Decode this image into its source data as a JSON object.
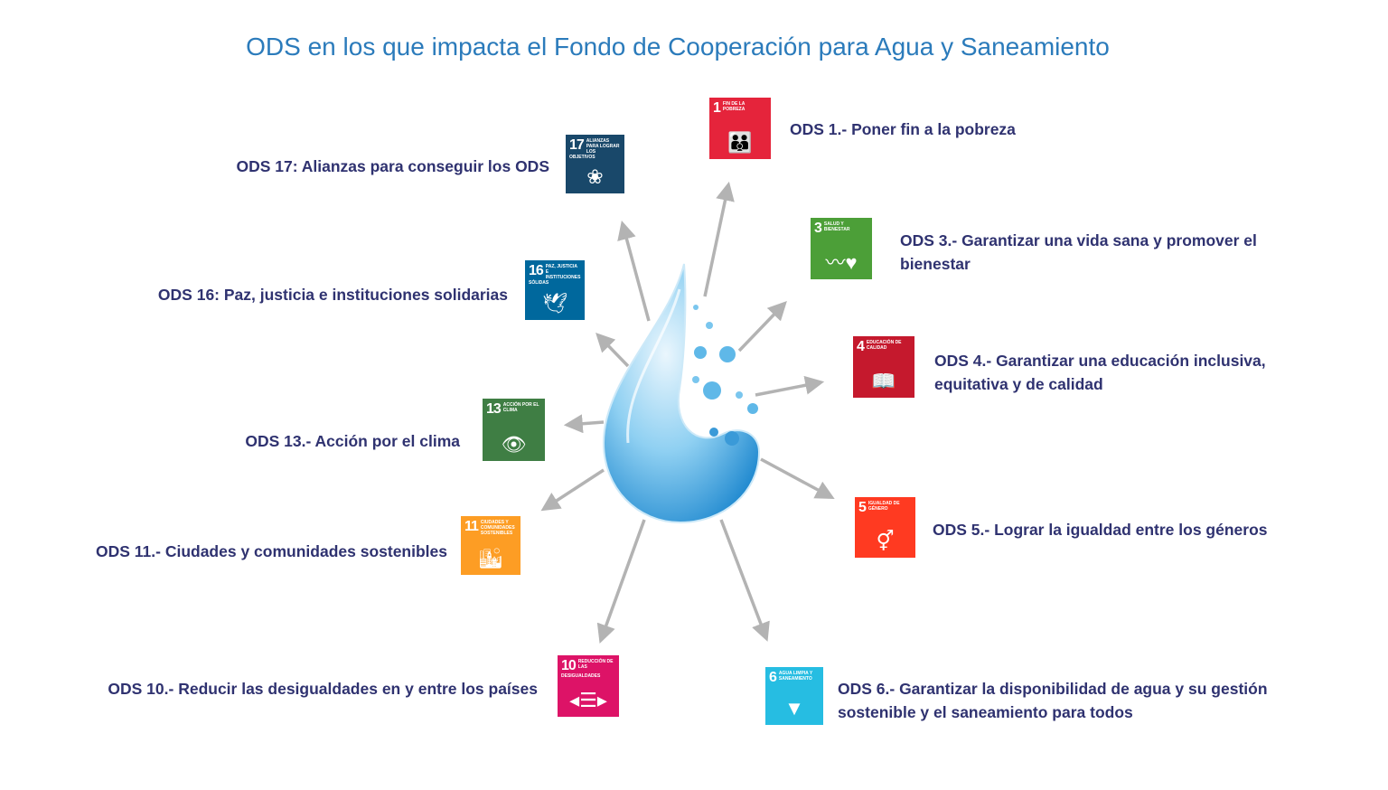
{
  "title": "ODS en los que impacta el Fondo de Cooperación para Agua y Saneamiento",
  "colors": {
    "title": "#2b7bbb",
    "label": "#2f3270",
    "arrow": "#b3b3b3",
    "drop": "#3ea4dc"
  },
  "goals": [
    {
      "id": "1",
      "number": "1",
      "tile_text": "Fin de la pobreza",
      "label": "ODS 1.- Poner fin a la pobreza",
      "color": "#E5243B",
      "icon": "family-icon"
    },
    {
      "id": "3",
      "number": "3",
      "tile_text": "Salud y bienestar",
      "label": "ODS 3.- Garantizar una vida sana y promover el bienestar",
      "color": "#4C9F38",
      "icon": "heartbeat-icon"
    },
    {
      "id": "4",
      "number": "4",
      "tile_text": "Educación de calidad",
      "label": "ODS 4.- Garantizar una educación inclusiva, equitativa y de calidad",
      "color": "#C5192D",
      "icon": "book-icon"
    },
    {
      "id": "5",
      "number": "5",
      "tile_text": "Igualdad de género",
      "label": "ODS 5.- Lograr la igualdad entre los géneros",
      "color": "#FF3A21",
      "icon": "gender-equality-icon"
    },
    {
      "id": "6",
      "number": "6",
      "tile_text": "Agua limpia y saneamiento",
      "label": "ODS 6.- Garantizar la disponibilidad de agua y su gestión sostenible y el saneamiento para todos",
      "color": "#26BDE2",
      "icon": "water-glass-icon"
    },
    {
      "id": "10",
      "number": "10",
      "tile_text": "Reducción de las desigualdades",
      "label": "ODS 10.- Reducir las desigualdades en y entre los países",
      "color": "#DD1367",
      "icon": "equality-arrows-icon"
    },
    {
      "id": "11",
      "number": "11",
      "tile_text": "Ciudades y comunidades sostenibles",
      "label": "ODS 11.- Ciudades y comunidades sostenibles",
      "color": "#FD9D24",
      "icon": "buildings-icon"
    },
    {
      "id": "13",
      "number": "13",
      "tile_text": "Acción por el clima",
      "label": "ODS 13.- Acción por el clima",
      "color": "#3F7E44",
      "icon": "eye-globe-icon"
    },
    {
      "id": "16",
      "number": "16",
      "tile_text": "Paz, justicia e instituciones sólidas",
      "label": "ODS 16: Paz, justicia e instituciones solidarias",
      "color": "#00689D",
      "icon": "dove-gavel-icon"
    },
    {
      "id": "17",
      "number": "17",
      "tile_text": "Alianzas para lograr los objetivos",
      "label": "ODS 17: Alianzas para conseguir los ODS",
      "color": "#19486A",
      "icon": "flower-rings-icon"
    }
  ]
}
